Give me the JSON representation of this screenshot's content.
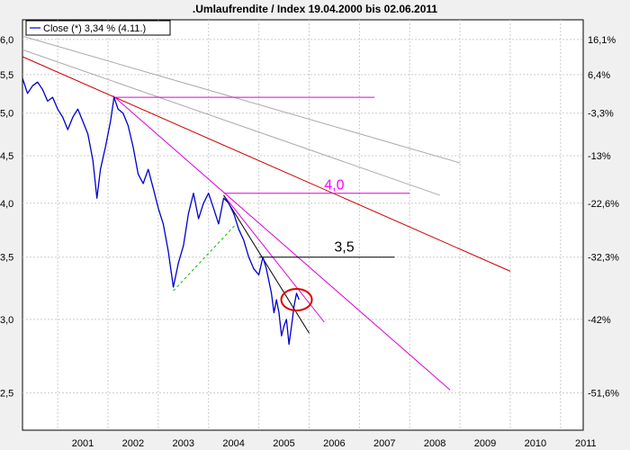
{
  "chart_data": {
    "type": "line",
    "title": ".Umlaufrendite / Index 19.04.2000 bis 02.06.2011",
    "legend": {
      "label": "Close (*) 3,34 % (4.11.)",
      "placement": "top-left"
    },
    "y_scale": "log",
    "ylim": [
      2.28,
      6.3
    ],
    "xlim": [
      2000.3,
      2011.45
    ],
    "grid": true,
    "x_ticks": [
      "2001",
      "2002",
      "2003",
      "2004",
      "2005",
      "2006",
      "2007",
      "2008",
      "2009",
      "2010",
      "2011"
    ],
    "y_ticks_left": [
      {
        "value": 6.0,
        "label": "6,0"
      },
      {
        "value": 5.5,
        "label": "5,5"
      },
      {
        "value": 5.0,
        "label": "5,0"
      },
      {
        "value": 4.5,
        "label": "4,5"
      },
      {
        "value": 4.0,
        "label": "4,0"
      },
      {
        "value": 3.5,
        "label": "3,5"
      },
      {
        "value": 3.0,
        "label": "3,0"
      },
      {
        "value": 2.5,
        "label": "2,5"
      }
    ],
    "y_ticks_right": [
      {
        "value": 6.0,
        "label": "16,1%"
      },
      {
        "value": 5.5,
        "label": "6,4%"
      },
      {
        "value": 5.0,
        "label": "-3,3%"
      },
      {
        "value": 4.5,
        "label": "-13%"
      },
      {
        "value": 4.0,
        "label": "-22,6%"
      },
      {
        "value": 3.5,
        "label": "-32,3%"
      },
      {
        "value": 3.0,
        "label": "-42%"
      },
      {
        "value": 2.5,
        "label": "-51,6%"
      }
    ],
    "series": [
      {
        "color": "#0000cc",
        "points": [
          [
            2000.3,
            5.45
          ],
          [
            2000.4,
            5.25
          ],
          [
            2000.5,
            5.35
          ],
          [
            2000.6,
            5.4
          ],
          [
            2000.7,
            5.3
          ],
          [
            2000.8,
            5.15
          ],
          [
            2000.9,
            5.2
          ],
          [
            2001.0,
            5.05
          ],
          [
            2001.1,
            4.95
          ],
          [
            2001.2,
            4.8
          ],
          [
            2001.3,
            4.95
          ],
          [
            2001.4,
            5.05
          ],
          [
            2001.5,
            4.9
          ],
          [
            2001.6,
            4.75
          ],
          [
            2001.7,
            4.45
          ],
          [
            2001.78,
            4.05
          ],
          [
            2001.85,
            4.35
          ],
          [
            2001.95,
            4.6
          ],
          [
            2002.05,
            4.9
          ],
          [
            2002.12,
            5.2
          ],
          [
            2002.2,
            5.05
          ],
          [
            2002.3,
            5.0
          ],
          [
            2002.4,
            4.85
          ],
          [
            2002.5,
            4.6
          ],
          [
            2002.6,
            4.3
          ],
          [
            2002.7,
            4.2
          ],
          [
            2002.8,
            4.35
          ],
          [
            2002.9,
            4.15
          ],
          [
            2003.0,
            3.95
          ],
          [
            2003.1,
            3.8
          ],
          [
            2003.2,
            3.55
          ],
          [
            2003.3,
            3.25
          ],
          [
            2003.4,
            3.45
          ],
          [
            2003.5,
            3.6
          ],
          [
            2003.6,
            3.9
          ],
          [
            2003.7,
            4.1
          ],
          [
            2003.8,
            3.85
          ],
          [
            2003.9,
            4.0
          ],
          [
            2004.0,
            4.1
          ],
          [
            2004.1,
            3.95
          ],
          [
            2004.2,
            3.8
          ],
          [
            2004.3,
            4.05
          ],
          [
            2004.4,
            4.0
          ],
          [
            2004.5,
            3.9
          ],
          [
            2004.6,
            3.75
          ],
          [
            2004.7,
            3.65
          ],
          [
            2004.8,
            3.5
          ],
          [
            2004.9,
            3.4
          ],
          [
            2005.0,
            3.35
          ],
          [
            2005.08,
            3.5
          ],
          [
            2005.15,
            3.4
          ],
          [
            2005.25,
            3.2
          ],
          [
            2005.3,
            3.05
          ],
          [
            2005.35,
            3.15
          ],
          [
            2005.4,
            3.05
          ],
          [
            2005.45,
            2.88
          ],
          [
            2005.5,
            2.95
          ],
          [
            2005.55,
            3.0
          ],
          [
            2005.6,
            2.82
          ],
          [
            2005.65,
            2.95
          ],
          [
            2005.7,
            3.1
          ],
          [
            2005.75,
            3.2
          ],
          [
            2005.8,
            3.15
          ]
        ]
      }
    ],
    "annotations": {
      "label_40": {
        "text": "4,0",
        "color": "#ff00ff"
      },
      "label_35": {
        "text": "3,5",
        "color": "#000000"
      }
    },
    "colors": {
      "background": "#ffffff",
      "grid": "#cccccc",
      "trend_red": "#cc0000",
      "trend_magenta": "#dd00dd",
      "trend_gray": "#aaaaaa",
      "trend_green": "#00bb00",
      "circle": "#dd0000"
    }
  }
}
